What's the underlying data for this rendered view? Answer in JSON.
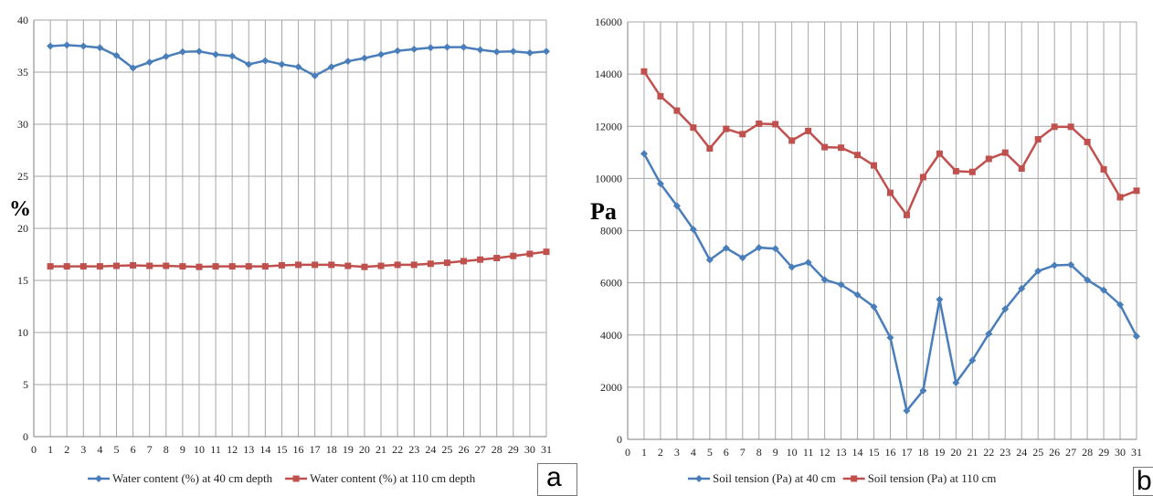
{
  "chart_data": [
    {
      "type": "line",
      "panel_label": "a",
      "ylabel": "%",
      "xlabel": "",
      "xlim": [
        0,
        31
      ],
      "ylim": [
        0,
        40
      ],
      "x_ticks": [
        0,
        1,
        2,
        3,
        4,
        5,
        6,
        7,
        8,
        9,
        10,
        11,
        12,
        13,
        14,
        15,
        16,
        17,
        18,
        19,
        20,
        21,
        22,
        23,
        24,
        25,
        26,
        27,
        28,
        29,
        30,
        31
      ],
      "y_ticks": [
        0,
        5,
        10,
        15,
        20,
        25,
        30,
        35,
        40
      ],
      "grid": true,
      "legend_position": "bottom",
      "x": [
        1,
        2,
        3,
        4,
        5,
        6,
        7,
        8,
        9,
        10,
        11,
        12,
        13,
        14,
        15,
        16,
        17,
        18,
        19,
        20,
        21,
        22,
        23,
        24,
        25,
        26,
        27,
        28,
        29,
        30,
        31
      ],
      "series": [
        {
          "name": "Water content (%) at 40 cm depth",
          "color": "#4a7ebb",
          "marker": "diamond",
          "values": [
            37.5,
            37.6,
            37.5,
            37.35,
            36.6,
            35.4,
            35.95,
            36.5,
            36.95,
            37.0,
            36.7,
            36.55,
            35.75,
            36.1,
            35.75,
            35.5,
            34.65,
            35.5,
            36.05,
            36.35,
            36.7,
            37.05,
            37.2,
            37.35,
            37.4,
            37.4,
            37.15,
            36.95,
            37.0,
            36.85,
            37.0
          ]
        },
        {
          "name": "Water content (%) at 110 cm depth",
          "color": "#c0504d",
          "marker": "square",
          "values": [
            16.35,
            16.35,
            16.35,
            16.35,
            16.4,
            16.45,
            16.4,
            16.4,
            16.35,
            16.3,
            16.35,
            16.35,
            16.35,
            16.35,
            16.45,
            16.5,
            16.5,
            16.5,
            16.4,
            16.3,
            16.4,
            16.5,
            16.5,
            16.6,
            16.7,
            16.85,
            17.0,
            17.15,
            17.35,
            17.55,
            17.75
          ]
        }
      ]
    },
    {
      "type": "line",
      "panel_label": "b",
      "ylabel": "Pa",
      "xlabel": "",
      "xlim": [
        0,
        31
      ],
      "ylim": [
        0,
        16000
      ],
      "x_ticks": [
        0,
        1,
        2,
        3,
        4,
        5,
        6,
        7,
        8,
        9,
        10,
        11,
        12,
        13,
        14,
        15,
        16,
        17,
        18,
        19,
        20,
        21,
        22,
        23,
        24,
        25,
        26,
        27,
        28,
        29,
        30,
        31
      ],
      "y_ticks": [
        0,
        2000,
        4000,
        6000,
        8000,
        10000,
        12000,
        14000,
        16000
      ],
      "grid": true,
      "legend_position": "bottom",
      "x": [
        1,
        2,
        3,
        4,
        5,
        6,
        7,
        8,
        9,
        10,
        11,
        12,
        13,
        14,
        15,
        16,
        17,
        18,
        19,
        20,
        21,
        22,
        23,
        24,
        25,
        26,
        27,
        28,
        29,
        30,
        31
      ],
      "series": [
        {
          "name": "Soil tension (Pa) at 40 cm",
          "color": "#4a7ebb",
          "marker": "diamond",
          "values": [
            10950,
            9800,
            8950,
            8050,
            6880,
            7330,
            6960,
            7350,
            7310,
            6600,
            6780,
            6120,
            5930,
            5540,
            5080,
            3900,
            1100,
            1870,
            5360,
            2170,
            3030,
            4050,
            5000,
            5780,
            6450,
            6670,
            6690,
            6110,
            5720,
            5160,
            3950
          ]
        },
        {
          "name": "Soil tension (Pa) at 110 cm",
          "color": "#c0504d",
          "marker": "square",
          "values": [
            14100,
            13150,
            12600,
            11950,
            11150,
            11900,
            11700,
            12100,
            12080,
            11450,
            11820,
            11200,
            11180,
            10900,
            10500,
            9450,
            8600,
            10050,
            10950,
            10280,
            10250,
            10750,
            10990,
            10380,
            11500,
            11980,
            11980,
            11400,
            10350,
            9280,
            9530
          ]
        }
      ]
    }
  ]
}
